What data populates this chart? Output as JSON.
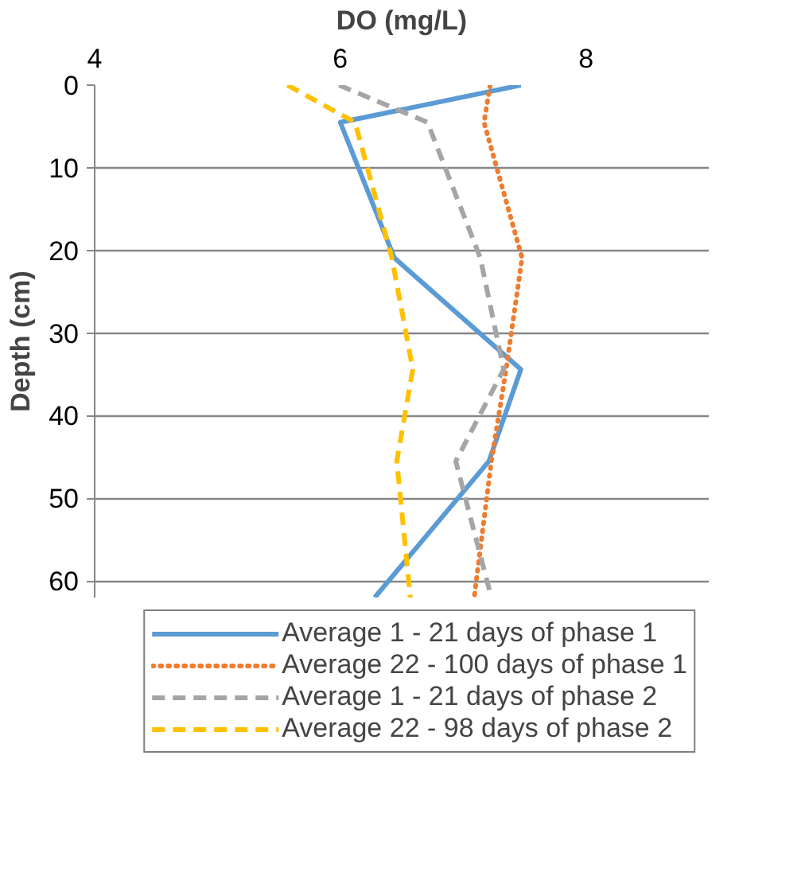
{
  "chart_data": {
    "type": "line",
    "xlabel": "DO (mg/L)",
    "ylabel": "Depth (cm)",
    "xlim": [
      4,
      9
    ],
    "xticks": [
      4,
      6,
      8
    ],
    "ylim": [
      62,
      0
    ],
    "yticks": [
      0,
      10,
      20,
      30,
      40,
      50,
      60
    ],
    "grid": "y",
    "legend": "bottom",
    "marker": "none",
    "series": [
      {
        "name": "Average 1 - 21 days of phase 1",
        "color": "#5b9bd5",
        "line_style": "solid",
        "x": [
          7.47,
          6.0,
          6.44,
          7.47,
          7.21,
          6.28
        ],
        "values": [
          0,
          4.5,
          20.9,
          34.4,
          45.5,
          62
        ]
      },
      {
        "name": "Average 22 - 100 days of phase 1",
        "color": "#ed7d31",
        "line_style": "dotted",
        "x": [
          7.22,
          7.17,
          7.48,
          7.35,
          7.23,
          7.09
        ],
        "values": [
          0,
          4.5,
          20.9,
          34.4,
          45.5,
          62
        ]
      },
      {
        "name": "Average 1 - 21 days of phase 2",
        "color": "#a5a5a5",
        "line_style": "dashed",
        "x": [
          5.99,
          6.71,
          7.14,
          7.33,
          6.94,
          7.23
        ],
        "values": [
          0,
          4.5,
          20.9,
          34.4,
          45.5,
          62
        ]
      },
      {
        "name": "Average 22 - 98 days of phase 2",
        "color": "#ffc000",
        "line_style": "dashed",
        "x": [
          5.57,
          6.12,
          6.42,
          6.59,
          6.46,
          6.57
        ],
        "values": [
          0,
          4.5,
          20.9,
          34.4,
          45.5,
          62
        ]
      }
    ]
  }
}
